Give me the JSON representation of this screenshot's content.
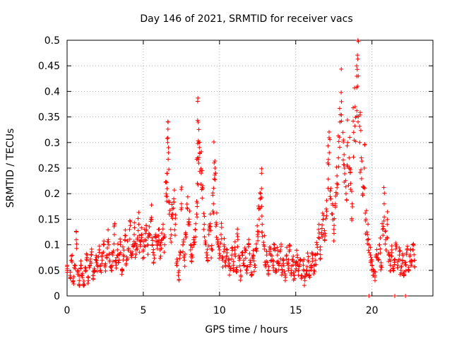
{
  "chart_data": {
    "type": "scatter",
    "title": "Day 146 of 2021, SRMTID for receiver vacs",
    "xlabel": "GPS time / hours",
    "ylabel": "SRMTID / TECUs",
    "xlim": [
      0,
      24
    ],
    "ylim": [
      0,
      0.5
    ],
    "xticks": [
      0,
      5,
      10,
      15,
      20
    ],
    "xtick_labels": [
      "0",
      "5",
      "10",
      "15",
      "20"
    ],
    "yticks": [
      0,
      0.05,
      0.1,
      0.15,
      0.2,
      0.25,
      0.3,
      0.35,
      0.4,
      0.45,
      0.5
    ],
    "ytick_labels": [
      "0",
      "0.05",
      "0.1",
      "0.15",
      "0.2",
      "0.25",
      "0.3",
      "0.35",
      "0.4",
      "0.45",
      "0.5"
    ],
    "grid": true,
    "marker": "+",
    "series": [
      {
        "name": "SRMTID",
        "color": "#ff0000",
        "points": [
          [
            0.0,
            0.05
          ],
          [
            0.2,
            0.04
          ],
          [
            0.3,
            0.07
          ],
          [
            0.4,
            0.03
          ],
          [
            0.5,
            0.06
          ],
          [
            0.6,
            0.11
          ],
          [
            0.7,
            0.05
          ],
          [
            0.8,
            0.03
          ],
          [
            0.9,
            0.06
          ],
          [
            1.0,
            0.04
          ],
          [
            1.1,
            0.02
          ],
          [
            1.2,
            0.05
          ],
          [
            1.3,
            0.07
          ],
          [
            1.4,
            0.03
          ],
          [
            1.5,
            0.06
          ],
          [
            1.6,
            0.08
          ],
          [
            1.7,
            0.04
          ],
          [
            1.8,
            0.05
          ],
          [
            1.9,
            0.07
          ],
          [
            2.0,
            0.06
          ],
          [
            2.1,
            0.09
          ],
          [
            2.2,
            0.05
          ],
          [
            2.3,
            0.07
          ],
          [
            2.4,
            0.1
          ],
          [
            2.5,
            0.06
          ],
          [
            2.6,
            0.08
          ],
          [
            2.7,
            0.11
          ],
          [
            2.8,
            0.07
          ],
          [
            2.9,
            0.05
          ],
          [
            3.0,
            0.08
          ],
          [
            3.1,
            0.12
          ],
          [
            3.2,
            0.06
          ],
          [
            3.3,
            0.09
          ],
          [
            3.4,
            0.07
          ],
          [
            3.5,
            0.1
          ],
          [
            3.6,
            0.05
          ],
          [
            3.7,
            0.08
          ],
          [
            3.8,
            0.11
          ],
          [
            3.9,
            0.07
          ],
          [
            4.0,
            0.09
          ],
          [
            4.1,
            0.13
          ],
          [
            4.2,
            0.08
          ],
          [
            4.3,
            0.1
          ],
          [
            4.4,
            0.12
          ],
          [
            4.5,
            0.09
          ],
          [
            4.6,
            0.11
          ],
          [
            4.7,
            0.14
          ],
          [
            4.8,
            0.1
          ],
          [
            4.9,
            0.12
          ],
          [
            5.0,
            0.09
          ],
          [
            5.1,
            0.11
          ],
          [
            5.2,
            0.13
          ],
          [
            5.3,
            0.1
          ],
          [
            5.4,
            0.12
          ],
          [
            5.5,
            0.15
          ],
          [
            5.6,
            0.1
          ],
          [
            5.7,
            0.08
          ],
          [
            5.8,
            0.12
          ],
          [
            5.9,
            0.1
          ],
          [
            6.0,
            0.13
          ],
          [
            6.1,
            0.09
          ],
          [
            6.2,
            0.11
          ],
          [
            6.3,
            0.14
          ],
          [
            6.4,
            0.1
          ],
          [
            6.5,
            0.2
          ],
          [
            6.55,
            0.24
          ],
          [
            6.6,
            0.3
          ],
          [
            6.65,
            0.29
          ],
          [
            6.7,
            0.16
          ],
          [
            6.8,
            0.13
          ],
          [
            6.9,
            0.17
          ],
          [
            7.0,
            0.19
          ],
          [
            7.1,
            0.14
          ],
          [
            7.2,
            0.06
          ],
          [
            7.3,
            0.04
          ],
          [
            7.4,
            0.08
          ],
          [
            7.5,
            0.18
          ],
          [
            7.6,
            0.1
          ],
          [
            7.7,
            0.07
          ],
          [
            7.8,
            0.12
          ],
          [
            7.9,
            0.17
          ],
          [
            8.0,
            0.15
          ],
          [
            8.1,
            0.09
          ],
          [
            8.2,
            0.08
          ],
          [
            8.3,
            0.11
          ],
          [
            8.4,
            0.13
          ],
          [
            8.5,
            0.16
          ],
          [
            8.55,
            0.27
          ],
          [
            8.6,
            0.34
          ],
          [
            8.65,
            0.3
          ],
          [
            8.7,
            0.28
          ],
          [
            8.8,
            0.24
          ],
          [
            8.9,
            0.21
          ],
          [
            9.0,
            0.14
          ],
          [
            9.1,
            0.1
          ],
          [
            9.2,
            0.08
          ],
          [
            9.3,
            0.12
          ],
          [
            9.4,
            0.16
          ],
          [
            9.5,
            0.09
          ],
          [
            9.6,
            0.18
          ],
          [
            9.65,
            0.26
          ],
          [
            9.7,
            0.25
          ],
          [
            9.8,
            0.14
          ],
          [
            9.9,
            0.1
          ],
          [
            10.0,
            0.09
          ],
          [
            10.1,
            0.12
          ],
          [
            10.2,
            0.07
          ],
          [
            10.3,
            0.1
          ],
          [
            10.4,
            0.06
          ],
          [
            10.5,
            0.09
          ],
          [
            10.6,
            0.07
          ],
          [
            10.7,
            0.05
          ],
          [
            10.8,
            0.08
          ],
          [
            10.9,
            0.06
          ],
          [
            11.0,
            0.09
          ],
          [
            11.1,
            0.05
          ],
          [
            11.2,
            0.11
          ],
          [
            11.3,
            0.07
          ],
          [
            11.4,
            0.04
          ],
          [
            11.5,
            0.08
          ],
          [
            11.6,
            0.06
          ],
          [
            11.7,
            0.09
          ],
          [
            11.8,
            0.05
          ],
          [
            11.9,
            0.1
          ],
          [
            12.0,
            0.07
          ],
          [
            12.1,
            0.04
          ],
          [
            12.2,
            0.08
          ],
          [
            12.3,
            0.06
          ],
          [
            12.4,
            0.09
          ],
          [
            12.5,
            0.12
          ],
          [
            12.6,
            0.15
          ],
          [
            12.7,
            0.2
          ],
          [
            12.75,
            0.21
          ],
          [
            12.8,
            0.14
          ],
          [
            12.9,
            0.1
          ],
          [
            13.0,
            0.06
          ],
          [
            13.1,
            0.08
          ],
          [
            13.2,
            0.05
          ],
          [
            13.3,
            0.09
          ],
          [
            13.4,
            0.07
          ],
          [
            13.5,
            0.06
          ],
          [
            13.6,
            0.1
          ],
          [
            13.7,
            0.05
          ],
          [
            13.8,
            0.08
          ],
          [
            13.9,
            0.06
          ],
          [
            14.0,
            0.09
          ],
          [
            14.1,
            0.05
          ],
          [
            14.2,
            0.07
          ],
          [
            14.3,
            0.04
          ],
          [
            14.4,
            0.08
          ],
          [
            14.5,
            0.06
          ],
          [
            14.6,
            0.09
          ],
          [
            14.7,
            0.05
          ],
          [
            14.8,
            0.07
          ],
          [
            14.9,
            0.04
          ],
          [
            15.0,
            0.06
          ],
          [
            15.1,
            0.08
          ],
          [
            15.2,
            0.05
          ],
          [
            15.3,
            0.07
          ],
          [
            15.4,
            0.04
          ],
          [
            15.5,
            0.06
          ],
          [
            15.6,
            0.03
          ],
          [
            15.7,
            0.05
          ],
          [
            15.8,
            0.07
          ],
          [
            15.9,
            0.04
          ],
          [
            16.0,
            0.06
          ],
          [
            16.1,
            0.08
          ],
          [
            16.2,
            0.05
          ],
          [
            16.3,
            0.07
          ],
          [
            16.4,
            0.1
          ],
          [
            16.5,
            0.13
          ],
          [
            16.6,
            0.09
          ],
          [
            16.7,
            0.12
          ],
          [
            16.8,
            0.15
          ],
          [
            16.9,
            0.11
          ],
          [
            17.0,
            0.17
          ],
          [
            17.1,
            0.26
          ],
          [
            17.2,
            0.28
          ],
          [
            17.3,
            0.21
          ],
          [
            17.4,
            0.16
          ],
          [
            17.5,
            0.13
          ],
          [
            17.6,
            0.18
          ],
          [
            17.7,
            0.22
          ],
          [
            17.8,
            0.27
          ],
          [
            17.9,
            0.34
          ],
          [
            18.0,
            0.38
          ],
          [
            18.1,
            0.32
          ],
          [
            18.2,
            0.25
          ],
          [
            18.3,
            0.2
          ],
          [
            18.4,
            0.3
          ],
          [
            18.5,
            0.27
          ],
          [
            18.6,
            0.22
          ],
          [
            18.7,
            0.18
          ],
          [
            18.8,
            0.32
          ],
          [
            18.9,
            0.37
          ],
          [
            19.0,
            0.45
          ],
          [
            19.05,
            0.41
          ],
          [
            19.1,
            0.43
          ],
          [
            19.2,
            0.3
          ],
          [
            19.3,
            0.27
          ],
          [
            19.4,
            0.2
          ],
          [
            19.5,
            0.25
          ],
          [
            19.6,
            0.15
          ],
          [
            19.7,
            0.12
          ],
          [
            19.8,
            0.1
          ],
          [
            19.9,
            0.08
          ],
          [
            20.0,
            0.06
          ],
          [
            20.1,
            0.05
          ],
          [
            20.2,
            0.04
          ],
          [
            20.3,
            0.08
          ],
          [
            20.4,
            0.07
          ],
          [
            20.5,
            0.1
          ],
          [
            20.6,
            0.06
          ],
          [
            20.7,
            0.13
          ],
          [
            20.8,
            0.18
          ],
          [
            20.9,
            0.11
          ],
          [
            21.0,
            0.14
          ],
          [
            21.1,
            0.08
          ],
          [
            21.2,
            0.06
          ],
          [
            21.3,
            0.09
          ],
          [
            21.4,
            0.05
          ],
          [
            21.5,
            0.07
          ],
          [
            21.6,
            0.1
          ],
          [
            21.7,
            0.06
          ],
          [
            21.8,
            0.08
          ],
          [
            21.9,
            0.05
          ],
          [
            22.0,
            0.07
          ],
          [
            22.1,
            0.04
          ],
          [
            22.2,
            0.06
          ],
          [
            22.3,
            0.09
          ],
          [
            22.4,
            0.05
          ],
          [
            22.5,
            0.08
          ],
          [
            22.6,
            0.06
          ],
          [
            22.7,
            0.09
          ],
          [
            22.8,
            0.07
          ],
          [
            19.8,
            0.0
          ],
          [
            21.5,
            0.0
          ],
          [
            22.2,
            0.0
          ]
        ]
      }
    ]
  }
}
